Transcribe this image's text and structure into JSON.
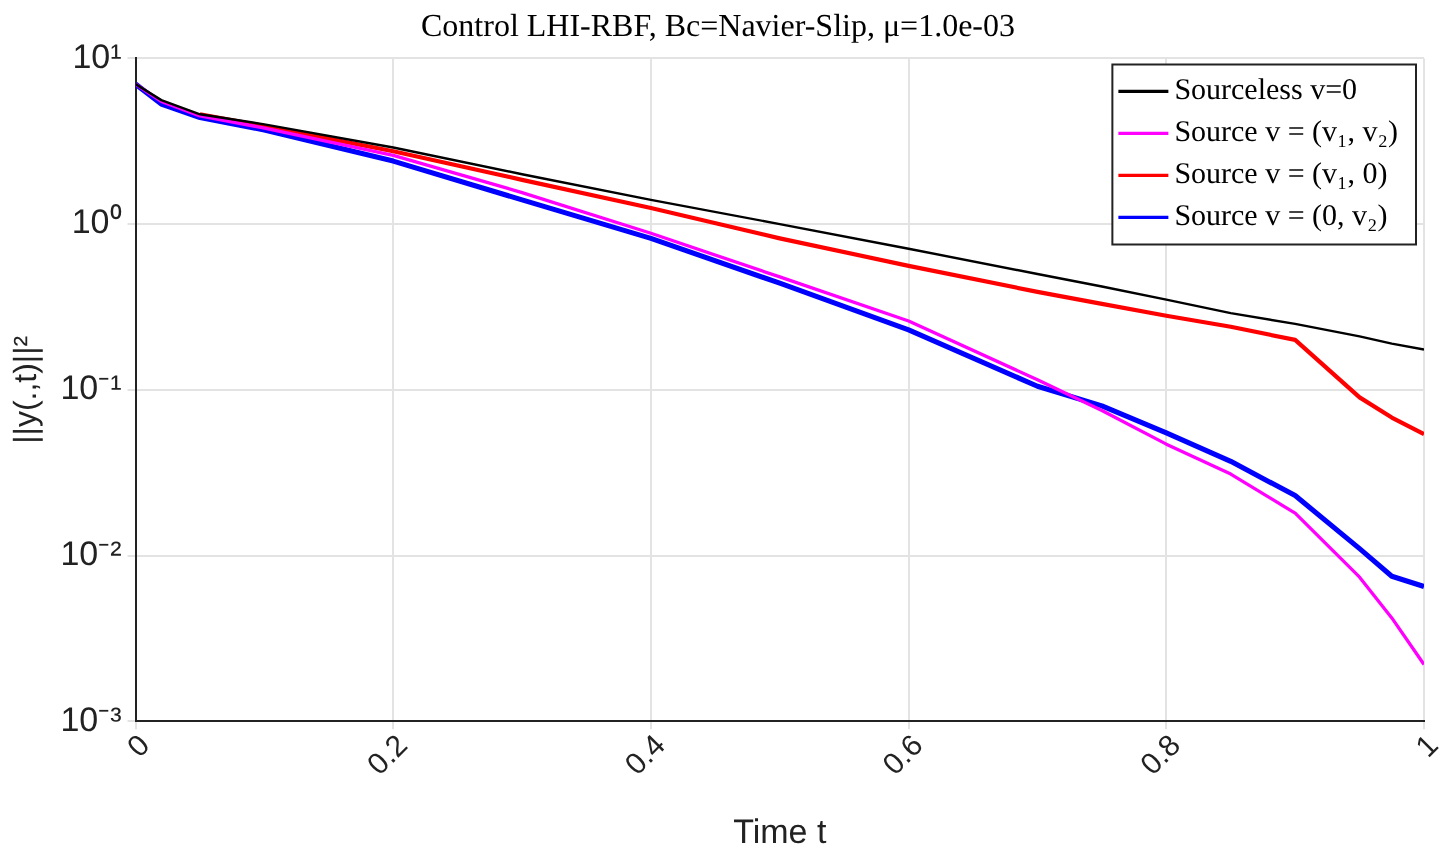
{
  "chart_data": {
    "type": "line",
    "title": "Control LHI-RBF, Bc=Navier-Slip, μ=1.0e-03",
    "xlabel": "Time t",
    "ylabel": "||y(.,t)||²",
    "x": [
      0,
      0.02,
      0.05,
      0.1,
      0.2,
      0.3,
      0.4,
      0.5,
      0.6,
      0.7,
      0.75,
      0.8,
      0.85,
      0.9,
      0.95,
      0.975,
      1
    ],
    "series": [
      {
        "name": "Sourceless v=0",
        "color": "#000000",
        "values": [
          7,
          5.6,
          4.6,
          4.0,
          2.9,
          2.0,
          1.4,
          1.0,
          0.71,
          0.5,
          0.42,
          0.35,
          0.29,
          0.25,
          0.21,
          0.19,
          0.175
        ]
      },
      {
        "name": "Source v = (v₁, v₂)",
        "color": "#ff00ff",
        "values": [
          7,
          5.5,
          4.5,
          3.8,
          2.6,
          1.55,
          0.88,
          0.48,
          0.26,
          0.115,
          0.075,
          0.047,
          0.031,
          0.018,
          0.0074,
          0.0042,
          0.0022
        ]
      },
      {
        "name": "Source v = (v₁, 0)",
        "color": "#ff0000",
        "values": [
          null,
          null,
          4.6,
          3.9,
          2.75,
          1.85,
          1.25,
          0.82,
          0.56,
          0.39,
          0.33,
          0.28,
          0.24,
          0.2,
          0.09,
          0.068,
          0.054
        ]
      },
      {
        "name": "Source v = (0, v₂)",
        "color": "#0000ff",
        "values": [
          7,
          5.3,
          4.4,
          3.7,
          2.4,
          1.4,
          0.82,
          0.44,
          0.23,
          0.105,
          0.08,
          0.055,
          0.037,
          0.023,
          0.011,
          0.0075,
          0.0065
        ]
      }
    ],
    "xlim": [
      0,
      1
    ],
    "xticks": [
      0,
      0.2,
      0.4,
      0.6,
      0.8,
      1
    ],
    "ylim": [
      0.001,
      10
    ],
    "yticks": [
      {
        "value": 0.001,
        "label": "10⁻³"
      },
      {
        "value": 0.01,
        "label": "10⁻²"
      },
      {
        "value": 0.1,
        "label": "10⁻¹"
      },
      {
        "value": 1,
        "label": "10⁰"
      },
      {
        "value": 10,
        "label": "10¹"
      }
    ],
    "log": "y",
    "grid": true,
    "legend": "top right",
    "marker": "none",
    "line_style": "solid"
  }
}
